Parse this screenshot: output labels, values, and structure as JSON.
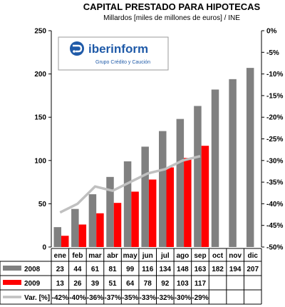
{
  "chart_data": {
    "type": "bar",
    "title": "CAPITAL PRESTADO PARA HIPOTECAS",
    "subtitle": "Millardos [miles de millones de euros] / INE",
    "categories": [
      "ene",
      "feb",
      "mar",
      "abr",
      "may",
      "jun",
      "jul",
      "ago",
      "sep",
      "oct",
      "nov",
      "dic"
    ],
    "ylim": [
      0,
      250
    ],
    "y_ticks": [
      "0",
      "50",
      "100",
      "150",
      "200",
      "250"
    ],
    "y2lim": [
      -50,
      0
    ],
    "y2_ticks": [
      "0%",
      "-5%",
      "-10%",
      "-15%",
      "-20%",
      "-25%",
      "-30%",
      "-35%",
      "-40%",
      "-45%",
      "-50%"
    ],
    "series": [
      {
        "name": "2008",
        "type": "bar",
        "color": "#808080",
        "values": [
          23,
          44,
          61,
          81,
          99,
          116,
          134,
          148,
          163,
          182,
          194,
          207
        ],
        "labels": [
          "23",
          "44",
          "61",
          "81",
          "99",
          "116",
          "134",
          "148",
          "163",
          "182",
          "194",
          "207"
        ]
      },
      {
        "name": "2009",
        "type": "bar",
        "color": "#ff0000",
        "values": [
          13,
          26,
          39,
          51,
          64,
          78,
          92,
          103,
          117,
          null,
          null,
          null
        ],
        "labels": [
          "13",
          "26",
          "39",
          "51",
          "64",
          "78",
          "92",
          "103",
          "117",
          "",
          "",
          ""
        ]
      },
      {
        "name": "Var. [%]",
        "type": "line",
        "axis": "secondary",
        "color": "#c0c0c0",
        "values": [
          -42,
          -40,
          -36,
          -37,
          -35,
          -33,
          -32,
          -30,
          -29,
          null,
          null,
          null
        ],
        "labels": [
          "-42%",
          "-40%",
          "-36%",
          "-37%",
          "-35%",
          "-33%",
          "-32%",
          "-30%",
          "-29%",
          "",
          "",
          ""
        ]
      }
    ],
    "grid": false,
    "legend": "table-below"
  },
  "logo": {
    "name": "iberinform",
    "tagline": "Grupo Crédito y Caución"
  }
}
